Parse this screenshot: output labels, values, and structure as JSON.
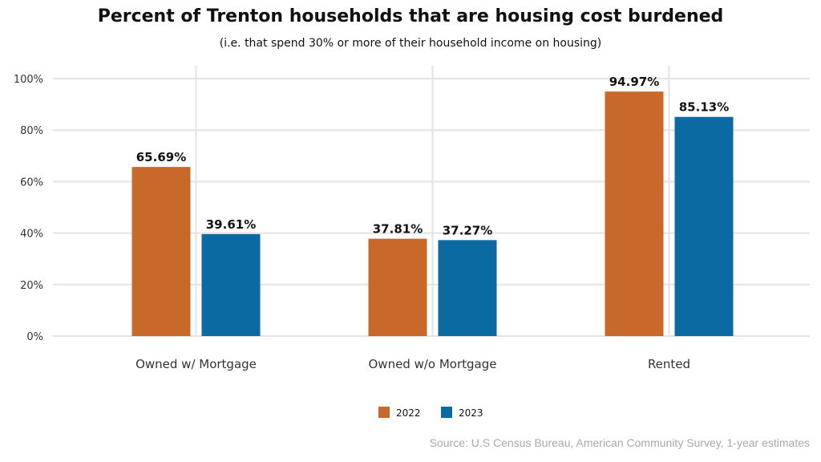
{
  "chart_data": {
    "type": "bar",
    "title": "Percent of Trenton households that are housing cost burdened",
    "subtitle": "(i.e. that spend 30% or more of their household income on housing)",
    "categories": [
      "Owned w/ Mortgage",
      "Owned w/o Mortgage",
      "Rented"
    ],
    "series": [
      {
        "name": "2022",
        "color": "#c8682b",
        "values": [
          65.69,
          37.81,
          94.97
        ],
        "labels": [
          "65.69%",
          "37.81%",
          "94.97%"
        ]
      },
      {
        "name": "2023",
        "color": "#0b6aa2",
        "values": [
          39.61,
          37.27,
          85.13
        ],
        "labels": [
          "39.61%",
          "37.27%",
          "85.13%"
        ]
      }
    ],
    "ylim": [
      0,
      100
    ],
    "yticks": [
      0,
      20,
      40,
      60,
      80,
      100
    ],
    "ytick_labels": [
      "0%",
      "20%",
      "40%",
      "60%",
      "80%",
      "100%"
    ],
    "xlabel": "",
    "ylabel": "",
    "grid": true,
    "legend_position": "bottom-center",
    "source": "Source: U.S Census Bureau, American Community Survey, 1-year estimates"
  }
}
